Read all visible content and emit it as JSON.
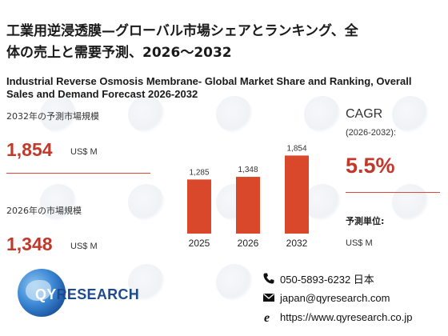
{
  "title_jp_line1": "工業用逆浸透膜—グローバル市場シェアとランキング、全",
  "title_jp_line2": "体の売上と需要予測、2026～2032",
  "title_en_line1": "Industrial Reverse Osmosis Membrane- Global Market Share and Ranking, Overall",
  "title_en_line2": "Sales and Demand Forecast 2026-2032",
  "stats": {
    "y2032_label": "2032年の予測市場規模",
    "y2032_value": "1,854",
    "y2032_unit": "US$ M",
    "y2026_label": "2026年の市場規模",
    "y2026_value": "1,348",
    "y2026_unit": "US$ M"
  },
  "cagr": {
    "label": "CAGR",
    "range": "(2026-2032):",
    "value": "5.5%"
  },
  "unit": {
    "label": "予測単位:",
    "value": "US$ M"
  },
  "contact": {
    "phone": "050-5893-6232 日本",
    "email": "japan@qyresearch.com",
    "web": "https://www.qyresearch.co.jp"
  },
  "logo": {
    "qy": "QY",
    "rest": "RESEARCH"
  },
  "colors": {
    "accent": "#d9482b",
    "accent_text": "#c0392b"
  },
  "chart_data": {
    "type": "bar",
    "categories": [
      "2025",
      "2026",
      "2032"
    ],
    "values": [
      1285,
      1348,
      1854
    ],
    "value_labels": [
      "1,285",
      "1,348",
      "1,854"
    ],
    "ylim": [
      0,
      1900
    ],
    "grid": false
  }
}
